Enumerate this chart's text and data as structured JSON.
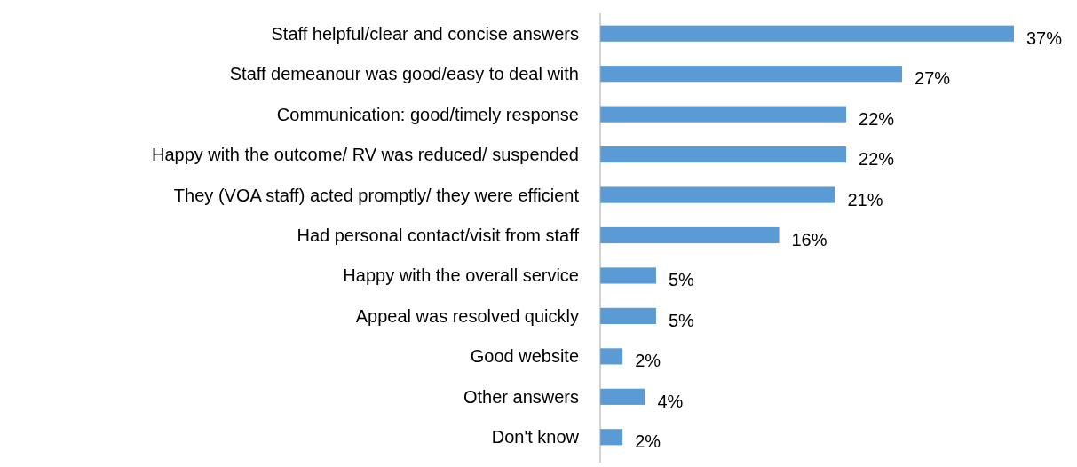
{
  "chart_data": {
    "type": "bar",
    "orientation": "horizontal",
    "categories": [
      "Staff helpful/clear and concise answers",
      "Staff demeanour was good/easy to deal with",
      "Communication: good/timely response",
      "Happy with the outcome/ RV was reduced/ suspended",
      "They (VOA staff) acted promptly/ they were efficient",
      "Had personal contact/visit from staff",
      "Happy with the overall service",
      "Appeal was resolved quickly",
      "Good website",
      "Other answers",
      "Don't know"
    ],
    "values": [
      37,
      27,
      22,
      22,
      21,
      16,
      5,
      5,
      2,
      4,
      2
    ],
    "value_labels": [
      "37%",
      "27%",
      "22%",
      "22%",
      "21%",
      "16%",
      "5%",
      "5%",
      "2%",
      "4%",
      "2%"
    ],
    "color": "#5b9bd5"
  }
}
